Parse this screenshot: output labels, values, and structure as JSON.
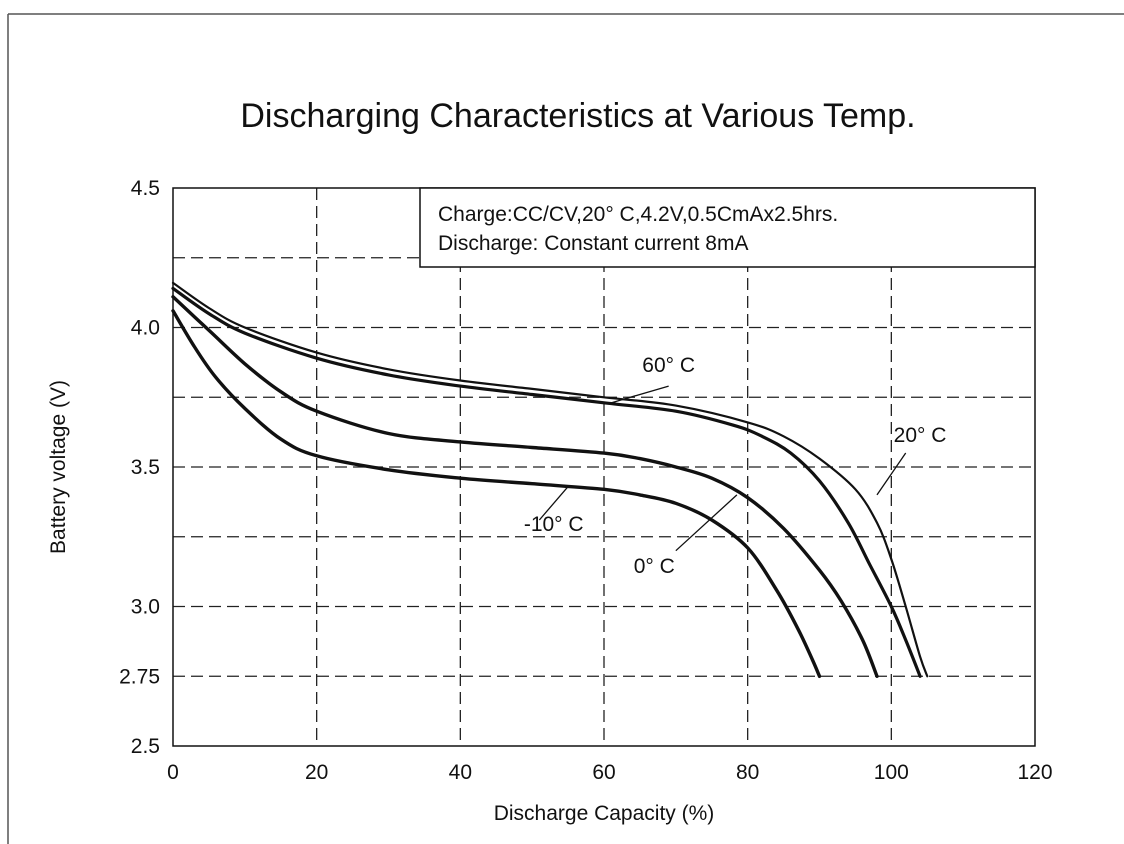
{
  "chart_data": {
    "type": "line",
    "title": "Discharging Characteristics at Various Temp.",
    "xlabel": "Discharge Capacity (%)",
    "ylabel": "Battery voltage (V)",
    "xlim": [
      0,
      120
    ],
    "ylim": [
      2.5,
      4.5
    ],
    "x_ticks": [
      "0",
      "20",
      "40",
      "60",
      "80",
      "100",
      "120"
    ],
    "y_ticks": [
      "2.5",
      "2.75",
      "3.0",
      "3.5",
      "4.0",
      "4.5"
    ],
    "grid": true,
    "grid_x": [
      20,
      40,
      60,
      80,
      100
    ],
    "grid_y": [
      2.75,
      3.0,
      3.25,
      3.5,
      3.75,
      4.0,
      4.25
    ],
    "legend_lines": [
      "Charge:CC/CV,20°  C,4.2V,0.5CmAx2.5hrs.",
      "Discharge: Constant current 8mA"
    ],
    "legend_position": "top-right",
    "series": [
      {
        "name": "60°  C",
        "x": [
          0,
          5,
          10,
          20,
          30,
          40,
          50,
          60,
          70,
          80,
          85,
          90,
          95,
          98,
          100,
          102,
          104,
          105
        ],
        "y": [
          4.16,
          4.07,
          4.0,
          3.91,
          3.85,
          3.81,
          3.78,
          3.75,
          3.72,
          3.66,
          3.61,
          3.53,
          3.42,
          3.3,
          3.17,
          3.0,
          2.82,
          2.75
        ]
      },
      {
        "name": "20°  C",
        "x": [
          0,
          5,
          10,
          20,
          30,
          40,
          50,
          60,
          70,
          78,
          82,
          86,
          90,
          94,
          97,
          100,
          102,
          104
        ],
        "y": [
          4.14,
          4.05,
          3.98,
          3.89,
          3.83,
          3.79,
          3.76,
          3.73,
          3.7,
          3.65,
          3.61,
          3.55,
          3.45,
          3.3,
          3.15,
          3.0,
          2.88,
          2.75
        ]
      },
      {
        "name": "0°  C",
        "x": [
          0,
          5,
          10,
          15,
          20,
          30,
          40,
          50,
          60,
          65,
          70,
          75,
          80,
          85,
          90,
          93,
          96,
          98
        ],
        "y": [
          4.11,
          3.99,
          3.87,
          3.77,
          3.7,
          3.62,
          3.59,
          3.57,
          3.55,
          3.53,
          3.5,
          3.46,
          3.39,
          3.28,
          3.13,
          3.02,
          2.88,
          2.75
        ]
      },
      {
        "name": "-10°  C",
        "x": [
          0,
          3,
          6,
          10,
          15,
          20,
          30,
          40,
          50,
          60,
          65,
          70,
          75,
          80,
          84,
          87,
          89,
          90
        ],
        "y": [
          4.06,
          3.93,
          3.82,
          3.71,
          3.6,
          3.54,
          3.49,
          3.46,
          3.44,
          3.42,
          3.4,
          3.37,
          3.31,
          3.21,
          3.06,
          2.92,
          2.81,
          2.75
        ]
      }
    ],
    "annotations": [
      {
        "label": "60°  C",
        "text_x": 69,
        "text_y": 3.84,
        "leader_from": [
          69,
          3.79
        ],
        "leader_to": [
          61,
          3.73
        ]
      },
      {
        "label": "20°  C",
        "text_x": 104,
        "text_y": 3.59,
        "leader_from": [
          102,
          3.55
        ],
        "leader_to": [
          98,
          3.4
        ]
      },
      {
        "label": "0°  C",
        "text_x": 67,
        "text_y": 3.12,
        "leader_from": [
          70,
          3.2
        ],
        "leader_to": [
          78.5,
          3.4
        ]
      },
      {
        "label": "-10°  C",
        "text_x": 53,
        "text_y": 3.27,
        "leader_from": [
          51,
          3.31
        ],
        "leader_to": [
          55,
          3.43
        ]
      }
    ]
  }
}
